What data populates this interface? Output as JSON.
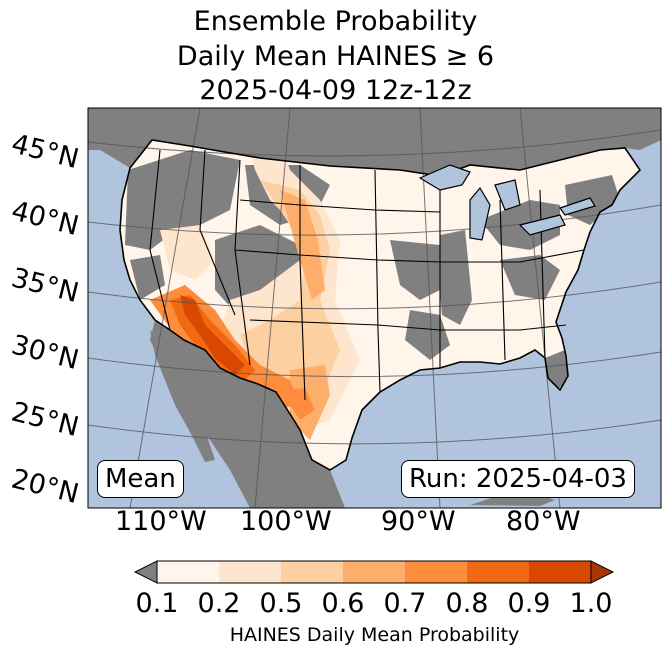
{
  "title": {
    "line1": "Ensemble Probability",
    "line2": "Daily Mean HAINES ≥ 6",
    "line3": "2025-04-09 12z-12z"
  },
  "map": {
    "lat_labels": [
      "45°N",
      "40°N",
      "35°N",
      "30°N",
      "25°N",
      "20°N"
    ],
    "lon_labels": [
      "110°W",
      "100°W",
      "90°W",
      "80°W"
    ],
    "mean_label": "Mean",
    "run_label": "Run: 2025-04-03",
    "colors": {
      "ocean": "#b0c4de",
      "land_below": "#808080",
      "border": "#000000"
    }
  },
  "colorbar": {
    "ticks": [
      "0.1",
      "0.2",
      "0.5",
      "0.6",
      "0.7",
      "0.8",
      "0.9",
      "1.0"
    ],
    "colors": [
      "#fff5eb",
      "#fee6ce",
      "#fdd0a2",
      "#fdae6b",
      "#fd8d3c",
      "#f16913",
      "#d94801"
    ],
    "under_color": "#808080",
    "over_color": "#a63603",
    "label": "HAINES Daily Mean Probability"
  }
}
